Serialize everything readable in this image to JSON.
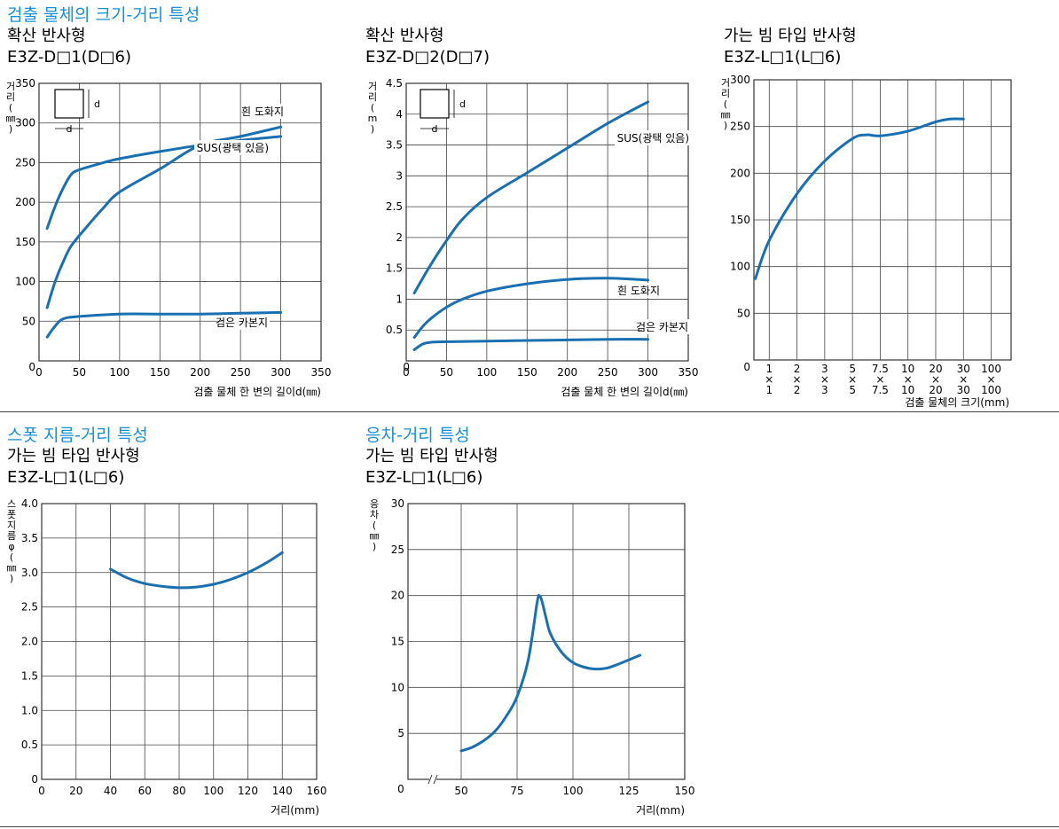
{
  "sections": {
    "size_distance": "검출 물체의 크기-거리 특성",
    "spot": "스폿 지름-거리 특성",
    "hysteresis": "응차-거리 특성"
  },
  "chart_data": [
    {
      "id": "c1",
      "type": "line",
      "subtitle": "확산 반사형",
      "model": "E3Z-D□1(D□6)",
      "ylabel": "거리(㎜)",
      "xlabel": "검출 물체 한 변의 길이d(㎜)",
      "xlim": [
        0,
        350
      ],
      "ylim": [
        0,
        350
      ],
      "xticks": [
        "0",
        "50",
        "100",
        "150",
        "200",
        "250",
        "300",
        "350"
      ],
      "yticks": [
        "0",
        "50",
        "100",
        "150",
        "200",
        "250",
        "300",
        "350"
      ],
      "series": [
        {
          "name": "흰 도화지",
          "x": [
            10,
            20,
            30,
            40,
            60,
            80,
            100,
            150,
            200,
            250,
            300
          ],
          "y": [
            67,
            100,
            125,
            145,
            170,
            193,
            213,
            242,
            272,
            283,
            295
          ]
        },
        {
          "name": "SUS(광택 있음)",
          "x": [
            10,
            20,
            30,
            40,
            50,
            80,
            100,
            150,
            200,
            250,
            300
          ],
          "y": [
            167,
            195,
            218,
            235,
            241,
            250,
            255,
            264,
            272,
            278,
            283
          ]
        },
        {
          "name": "검은 카본지",
          "x": [
            10,
            20,
            30,
            50,
            100,
            150,
            200,
            250,
            300
          ],
          "y": [
            30,
            44,
            53,
            56,
            59,
            59,
            59,
            60,
            61
          ]
        }
      ],
      "inset": {
        "label": "d"
      }
    },
    {
      "id": "c2",
      "type": "line",
      "subtitle": "확산 반사형",
      "model": "E3Z-D□2(D□7)",
      "ylabel": "거리(m)",
      "xlabel": "검출 물체 한 변의 길이d(㎜)",
      "xlim": [
        0,
        350
      ],
      "ylim": [
        0,
        4.5
      ],
      "xticks": [
        "0",
        "50",
        "100",
        "150",
        "200",
        "250",
        "300",
        "350"
      ],
      "yticks": [
        "0.5",
        "1",
        "1.5",
        "2",
        "2.5",
        "3",
        "3.5",
        "4",
        "4.5"
      ],
      "series": [
        {
          "name": "SUS(광택 있음)",
          "x": [
            10,
            30,
            50,
            70,
            100,
            150,
            200,
            250,
            300
          ],
          "y": [
            1.1,
            1.55,
            1.95,
            2.3,
            2.65,
            3.05,
            3.45,
            3.85,
            4.2
          ]
        },
        {
          "name": "흰 도화지",
          "x": [
            10,
            20,
            30,
            50,
            70,
            100,
            150,
            200,
            250,
            300
          ],
          "y": [
            0.38,
            0.55,
            0.68,
            0.87,
            1.0,
            1.13,
            1.25,
            1.32,
            1.34,
            1.31
          ]
        },
        {
          "name": "검은 카본지",
          "x": [
            10,
            20,
            30,
            50,
            100,
            150,
            200,
            250,
            300
          ],
          "y": [
            0.18,
            0.27,
            0.3,
            0.31,
            0.32,
            0.33,
            0.34,
            0.35,
            0.35
          ]
        }
      ],
      "inset": {
        "label": "d"
      }
    },
    {
      "id": "c3",
      "type": "line",
      "subtitle": "가는 빔 타입 반사형",
      "model": "E3Z-L□1(L□6)",
      "ylabel": "거리(㎜)",
      "xlabel": "검출 물체의 크기(mm)",
      "ylim": [
        0,
        300
      ],
      "yticks": [
        "50",
        "100",
        "150",
        "200",
        "250",
        "300"
      ],
      "categories": [
        "1×1",
        "2×2",
        "3×3",
        "5×5",
        "7.5×7.5",
        "10×10",
        "20×20",
        "30×30",
        "100×100"
      ],
      "x_labels": [
        [
          "1",
          "×",
          "1"
        ],
        [
          "2",
          "×",
          "2"
        ],
        [
          "3",
          "×",
          "3"
        ],
        [
          "5",
          "×",
          "5"
        ],
        [
          "7.5",
          "×",
          "7.5"
        ],
        [
          "10",
          "×",
          "10"
        ],
        [
          "20",
          "×",
          "20"
        ],
        [
          "30",
          "×",
          "30"
        ],
        [
          "100",
          "×",
          "100"
        ]
      ],
      "origin_label": "0",
      "series": [
        {
          "name": "",
          "x": [
            0.5,
            1,
            2,
            3,
            4,
            4.5,
            5,
            6,
            7,
            7.5,
            8
          ],
          "y": [
            87,
            128,
            178,
            213,
            237,
            241,
            240,
            245,
            255,
            258,
            258
          ]
        }
      ]
    },
    {
      "id": "c4",
      "type": "line",
      "subtitle": "가는 빔 타입 반사형",
      "model": "E3Z-L□1(L□6)",
      "ylabel": "스폿지름φ(㎜)",
      "xlabel": "거리(mm)",
      "xlim": [
        0,
        160
      ],
      "ylim": [
        0,
        4.0
      ],
      "xticks": [
        "0",
        "20",
        "40",
        "60",
        "80",
        "100",
        "120",
        "140",
        "160"
      ],
      "yticks": [
        "0",
        "0.5",
        "1.0",
        "1.5",
        "2.0",
        "2.5",
        "3.0",
        "3.5",
        "4.0"
      ],
      "series": [
        {
          "name": "",
          "x": [
            40,
            50,
            60,
            70,
            80,
            90,
            100,
            110,
            120,
            130,
            140
          ],
          "y": [
            3.05,
            2.92,
            2.84,
            2.8,
            2.78,
            2.79,
            2.83,
            2.9,
            3.0,
            3.13,
            3.29
          ]
        }
      ]
    },
    {
      "id": "c5",
      "type": "line",
      "subtitle": "가는 빔 타입 반사형",
      "model": "E3Z-L□1(L□6)",
      "ylabel": "응차(㎜)",
      "xlabel": "거리(mm)",
      "xlim": [
        50,
        150
      ],
      "ylim": [
        0,
        30
      ],
      "xticks": [
        "50",
        "75",
        "100",
        "125",
        "150"
      ],
      "yticks": [
        "5",
        "10",
        "15",
        "20",
        "25",
        "30"
      ],
      "origin_label": "0",
      "series": [
        {
          "name": "",
          "x": [
            50,
            55,
            60,
            65,
            70,
            75,
            80,
            84,
            85,
            86,
            88,
            90,
            95,
            100,
            105,
            110,
            115,
            120,
            125,
            130
          ],
          "y": [
            3.1,
            3.5,
            4.2,
            5.2,
            6.8,
            9.0,
            13.0,
            19.3,
            19.9,
            19.5,
            17.5,
            15.8,
            13.8,
            12.7,
            12.2,
            12.0,
            12.1,
            12.5,
            13.0,
            13.5
          ]
        }
      ]
    }
  ]
}
